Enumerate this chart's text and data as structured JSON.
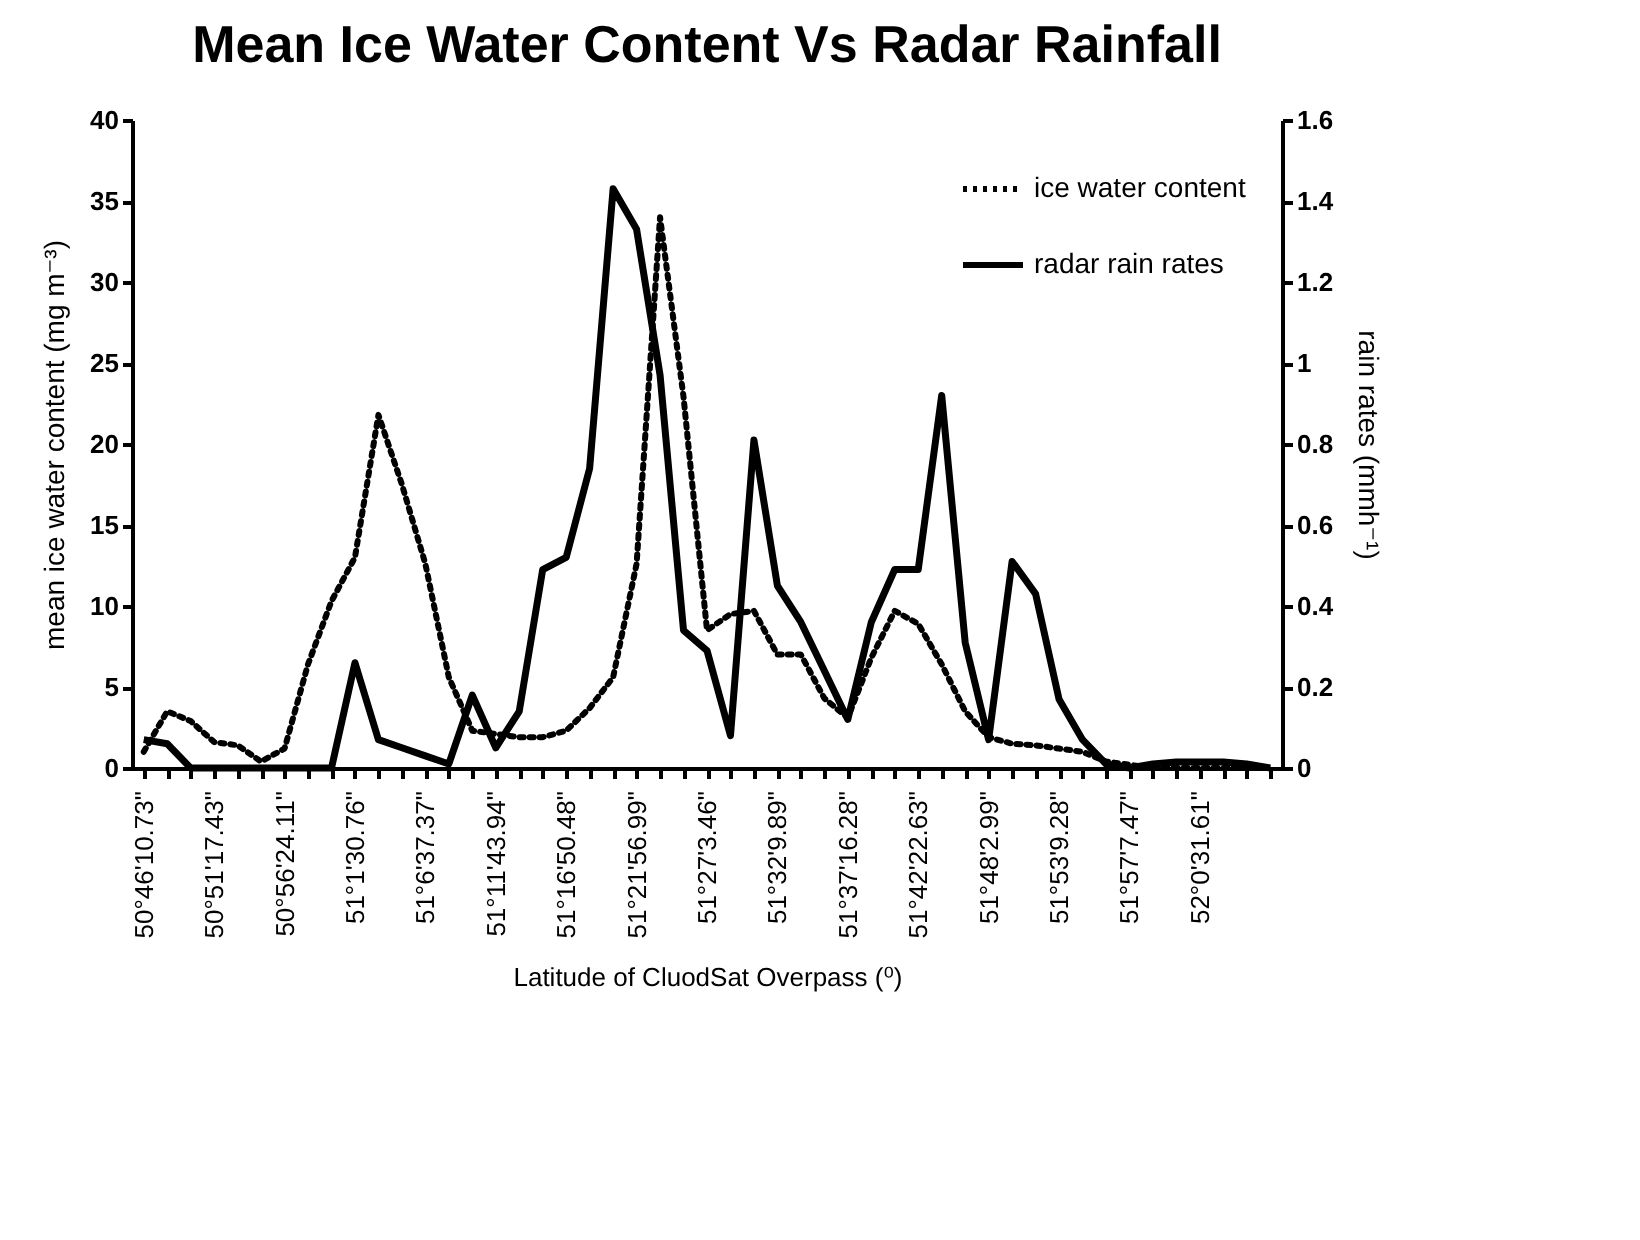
{
  "chart_data": {
    "type": "line",
    "title": "Mean Ice Water Content Vs Radar Rainfall",
    "xlabel": "Latitude of CluodSat Overpass (⁰)",
    "ylabel": "mean ice water content (mg m⁻³)",
    "y2label": "rain rates (mmh⁻¹)",
    "categories": [
      "50°46'10.73\"",
      null,
      null,
      "50°51'17.43\"",
      null,
      null,
      "50°56'24.11\"",
      null,
      null,
      "51°1'30.76\"",
      null,
      null,
      "51°6'37.37\"",
      null,
      null,
      "51°11'43.94\"",
      null,
      null,
      "51°16'50.48\"",
      null,
      null,
      "51°21'56.99\"",
      null,
      null,
      "51°27'3.46\"",
      null,
      null,
      "51°32'9.89\"",
      null,
      null,
      "51°37'16.28\"",
      null,
      null,
      "51°42'22.63\"",
      null,
      null,
      "51°48'2.99\"",
      null,
      null,
      "51°53'9.28\"",
      null,
      null,
      "51°57'7.47\"",
      null,
      null,
      "52°0'31.61\"",
      null,
      null,
      null
    ],
    "series": [
      {
        "name": "ice water content",
        "color": "#000000",
        "line_style": "dotted",
        "values": [
          1.0,
          3.5,
          2.9,
          1.6,
          1.4,
          0.4,
          1.2,
          6.4,
          10.3,
          13,
          21.8,
          17.5,
          12.6,
          5.6,
          2.3,
          2.1,
          1.9,
          1.9,
          2.3,
          3.7,
          5.6,
          12.6,
          34,
          22.9,
          8.5,
          9.5,
          9.7,
          7.0,
          7.0,
          4.3,
          3.1,
          6.8,
          9.7,
          8.9,
          6.4,
          3.5,
          1.9,
          1.5,
          1.4,
          1.2,
          1.0,
          0.4,
          0.2,
          0,
          0,
          0,
          0,
          0,
          0
        ]
      },
      {
        "name": "radar rain rates",
        "color": "#000000",
        "line_style": "solid",
        "axis": "y2",
        "values": [
          0.07,
          0.06,
          0,
          0,
          0,
          0,
          0,
          0,
          0,
          0.26,
          0.07,
          0.05,
          0.03,
          0.01,
          0.18,
          0.05,
          0.14,
          0.49,
          0.52,
          0.74,
          1.43,
          1.33,
          0.97,
          0.34,
          0.29,
          0.08,
          0.81,
          0.45,
          0.36,
          0.24,
          0.12,
          0.36,
          0.49,
          0.49,
          0.92,
          0.31,
          0.07,
          0.51,
          0.43,
          0.17,
          0.07,
          0.01,
          0,
          0.01,
          0.015,
          0.015,
          0.015,
          0.01,
          0
        ]
      }
    ],
    "ylim": [
      0,
      40
    ],
    "yticks": [
      0,
      5,
      10,
      15,
      20,
      25,
      30,
      35,
      40
    ],
    "y2lim": [
      0,
      1.6
    ],
    "y2ticks": [
      0,
      0.2,
      0.4,
      0.6,
      0.8,
      1,
      1.2,
      1.4,
      1.6
    ],
    "grid": false,
    "legend": "top right",
    "marker": "none"
  }
}
